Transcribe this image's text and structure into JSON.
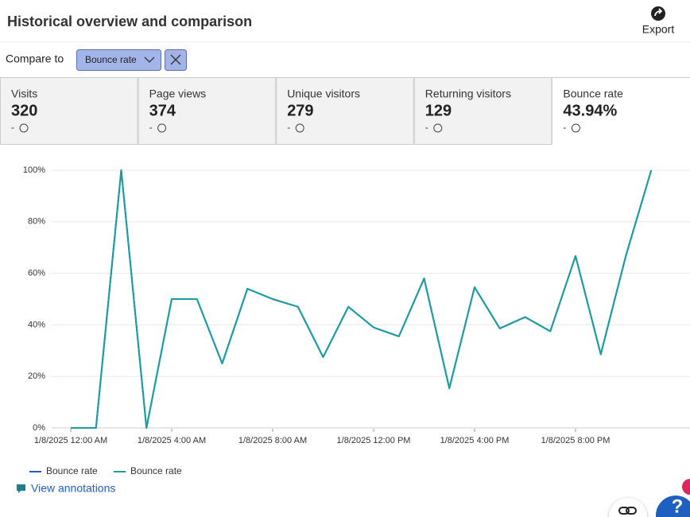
{
  "header": {
    "title": "Historical overview and comparison",
    "export": "Export"
  },
  "compare": {
    "label": "Compare to",
    "selected": "Bounce rate"
  },
  "metrics": [
    {
      "label": "Visits",
      "value": 320,
      "change": "-"
    },
    {
      "label": "Page views",
      "value": 374,
      "change": "-"
    },
    {
      "label": "Unique visitors",
      "value": 279,
      "change": "-"
    },
    {
      "label": "Returning visitors",
      "value": 129,
      "change": "-"
    },
    {
      "label": "Bounce rate",
      "value": "43.94%",
      "change": "-"
    }
  ],
  "chart_data": {
    "type": "line",
    "categories": [
      "1/8/2025 12:00 AM",
      null,
      null,
      null,
      "1/8/2025 4:00 AM",
      null,
      null,
      null,
      "1/8/2025 8:00 AM",
      null,
      null,
      null,
      "1/8/2025 12:00 PM",
      null,
      null,
      null,
      "1/8/2025 4:00 PM",
      null,
      null,
      null,
      "1/8/2025 8:00 PM",
      null,
      null,
      null
    ],
    "series": [
      {
        "name": "Bounce rate",
        "color": "#1f5fd1",
        "values": [
          0,
          0,
          100,
          0,
          50,
          50,
          25,
          54,
          50,
          47,
          27.5,
          47,
          39,
          35.5,
          58,
          15.4,
          54.6,
          38.6,
          43,
          37.5,
          66.7,
          28.6,
          67,
          100
        ]
      },
      {
        "name": "Bounce rate",
        "color": "#1a9e9e",
        "values": [
          0,
          0,
          100,
          0,
          50,
          50,
          25,
          54,
          50,
          47,
          27.5,
          47,
          39,
          35.5,
          58,
          15.4,
          54.6,
          38.6,
          43,
          37.5,
          66.7,
          28.6,
          67,
          100
        ]
      }
    ],
    "ylim": [
      0,
      100
    ],
    "yticks": [
      {
        "value": 0,
        "label": "0%"
      },
      {
        "value": 20,
        "label": "20%"
      },
      {
        "value": 40,
        "label": "40%"
      },
      {
        "value": 60,
        "label": "60%"
      },
      {
        "value": 80,
        "label": "80%"
      },
      {
        "value": 100,
        "label": "100%"
      }
    ],
    "grid": true
  },
  "footer": {
    "annotations": "View annotations",
    "help": "?"
  }
}
